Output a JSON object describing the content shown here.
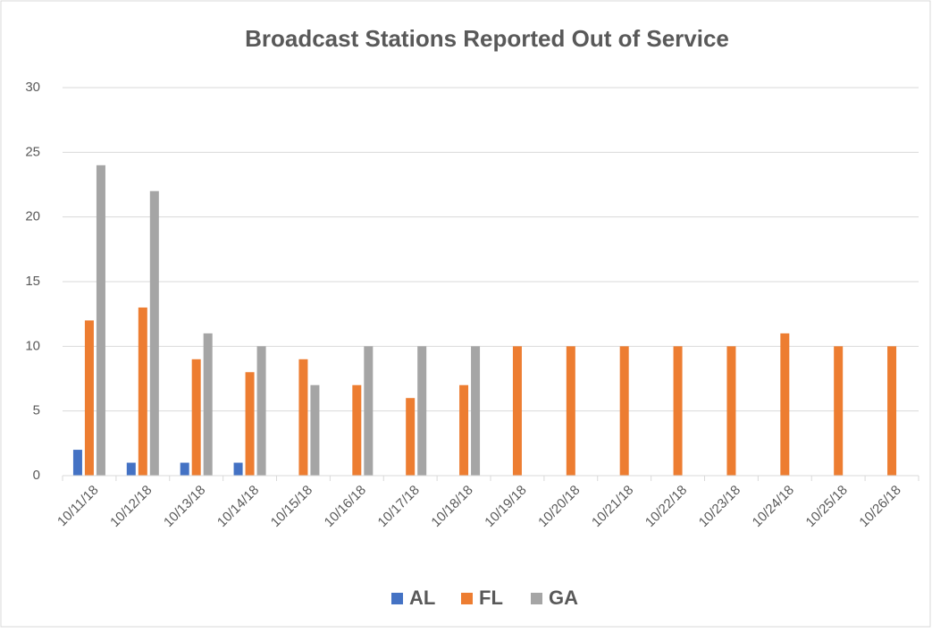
{
  "chart_data": {
    "type": "bar",
    "title": "Broadcast Stations Reported Out of Service",
    "categories": [
      "10/11/18",
      "10/12/18",
      "10/13/18",
      "10/14/18",
      "10/15/18",
      "10/16/18",
      "10/17/18",
      "10/18/18",
      "10/19/18",
      "10/20/18",
      "10/21/18",
      "10/22/18",
      "10/23/18",
      "10/24/18",
      "10/25/18",
      "10/26/18"
    ],
    "series": [
      {
        "name": "AL",
        "color": "#4472c4",
        "values": [
          2,
          1,
          1,
          1,
          null,
          null,
          null,
          null,
          null,
          null,
          null,
          null,
          null,
          null,
          null,
          null
        ]
      },
      {
        "name": "FL",
        "color": "#ed7d31",
        "values": [
          12,
          13,
          9,
          8,
          9,
          7,
          6,
          7,
          10,
          10,
          10,
          10,
          10,
          11,
          10,
          10
        ]
      },
      {
        "name": "GA",
        "color": "#a5a5a5",
        "values": [
          24,
          22,
          11,
          10,
          7,
          10,
          10,
          10,
          null,
          null,
          null,
          null,
          null,
          null,
          null,
          null
        ]
      }
    ],
    "ylim": [
      0,
      30
    ],
    "yticks": [
      0,
      5,
      10,
      15,
      20,
      25,
      30
    ],
    "grid": true,
    "legend": "bottom"
  }
}
